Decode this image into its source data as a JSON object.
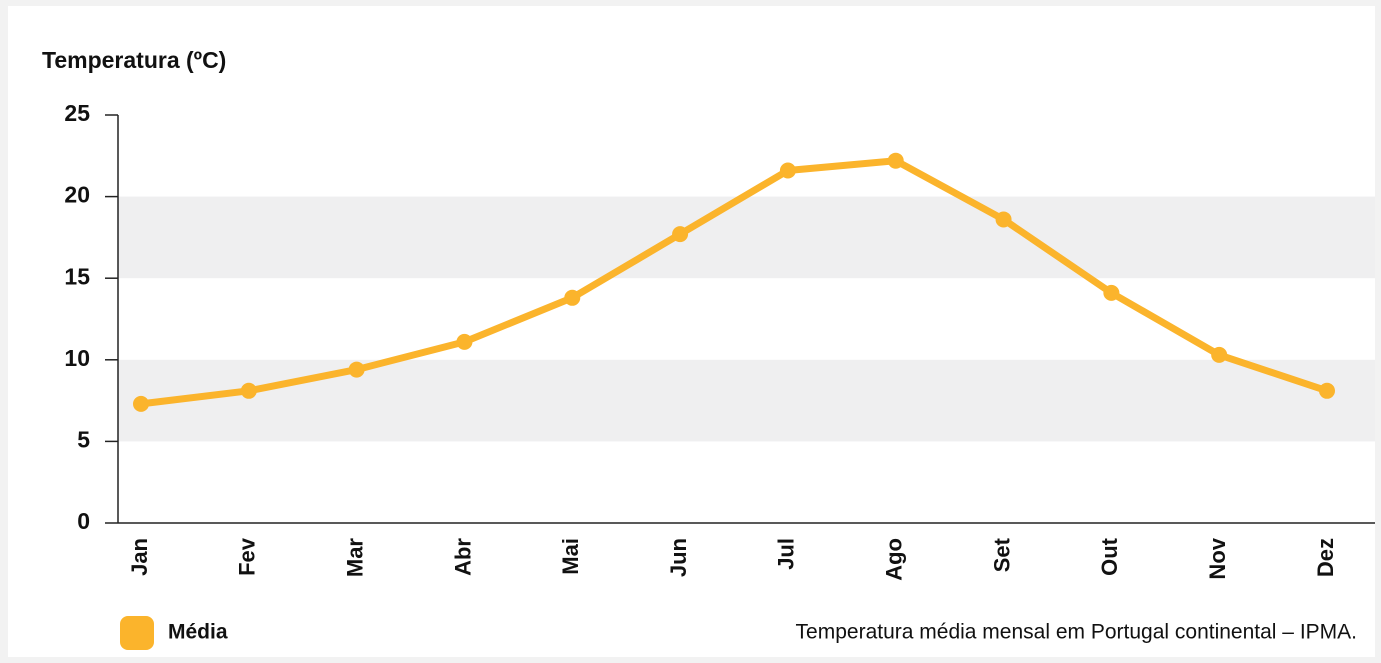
{
  "chart_data": {
    "type": "line",
    "y_label": "Temperatura (ºC)",
    "source": "Temperatura média mensal em Portugal continental – IPMA.",
    "categories": [
      "Jan",
      "Fev",
      "Mar",
      "Abr",
      "Mai",
      "Jun",
      "Jul",
      "Ago",
      "Set",
      "Out",
      "Nov",
      "Dez"
    ],
    "series": [
      {
        "name": "Média",
        "color": "#fbb42c",
        "values": [
          7.3,
          8.1,
          9.4,
          11.1,
          13.8,
          17.7,
          21.6,
          22.2,
          18.6,
          14.1,
          10.3,
          8.1
        ]
      }
    ],
    "ylim": [
      0,
      25
    ],
    "yticks": [
      0,
      5,
      10,
      15,
      20,
      25
    ],
    "banded_grid": true,
    "band_color": "#efeff0",
    "legend": "bottom-left"
  }
}
